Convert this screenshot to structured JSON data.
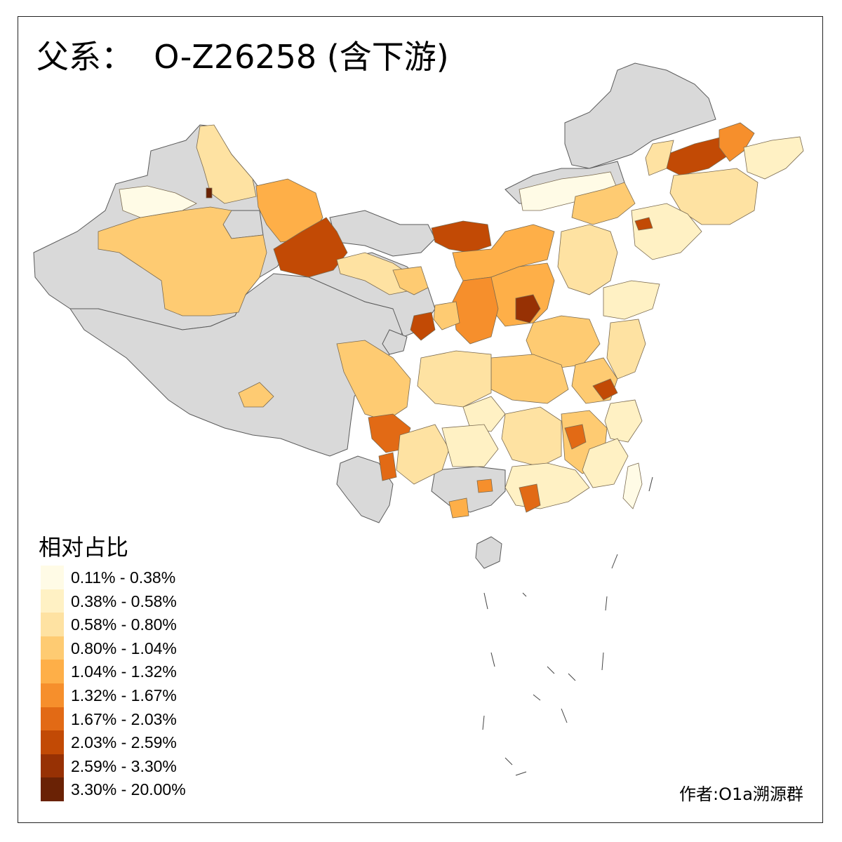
{
  "title": "父系：  O-Z26258 (含下游)",
  "credit": "作者:O1a溯源群",
  "legend": {
    "title": "相对占比",
    "items": [
      {
        "label": "0.11% - 0.38%",
        "color": "#FFFBE6"
      },
      {
        "label": "0.38% - 0.58%",
        "color": "#FFF1C4"
      },
      {
        "label": "0.58% - 0.80%",
        "color": "#FEE2A2"
      },
      {
        "label": "0.80% - 1.04%",
        "color": "#FECB72"
      },
      {
        "label": "1.04% - 1.32%",
        "color": "#FEAF48"
      },
      {
        "label": "1.32% - 1.67%",
        "color": "#F68F2C"
      },
      {
        "label": "1.67% - 2.03%",
        "color": "#E26A15"
      },
      {
        "label": "2.03% - 2.59%",
        "color": "#C24A05"
      },
      {
        "label": "2.59% - 3.30%",
        "color": "#973104"
      },
      {
        "label": "3.30% - 20.00%",
        "color": "#6A2205"
      }
    ]
  },
  "colors": {
    "no_data": "#D9D9D9",
    "border": "#5a5a5a"
  }
}
